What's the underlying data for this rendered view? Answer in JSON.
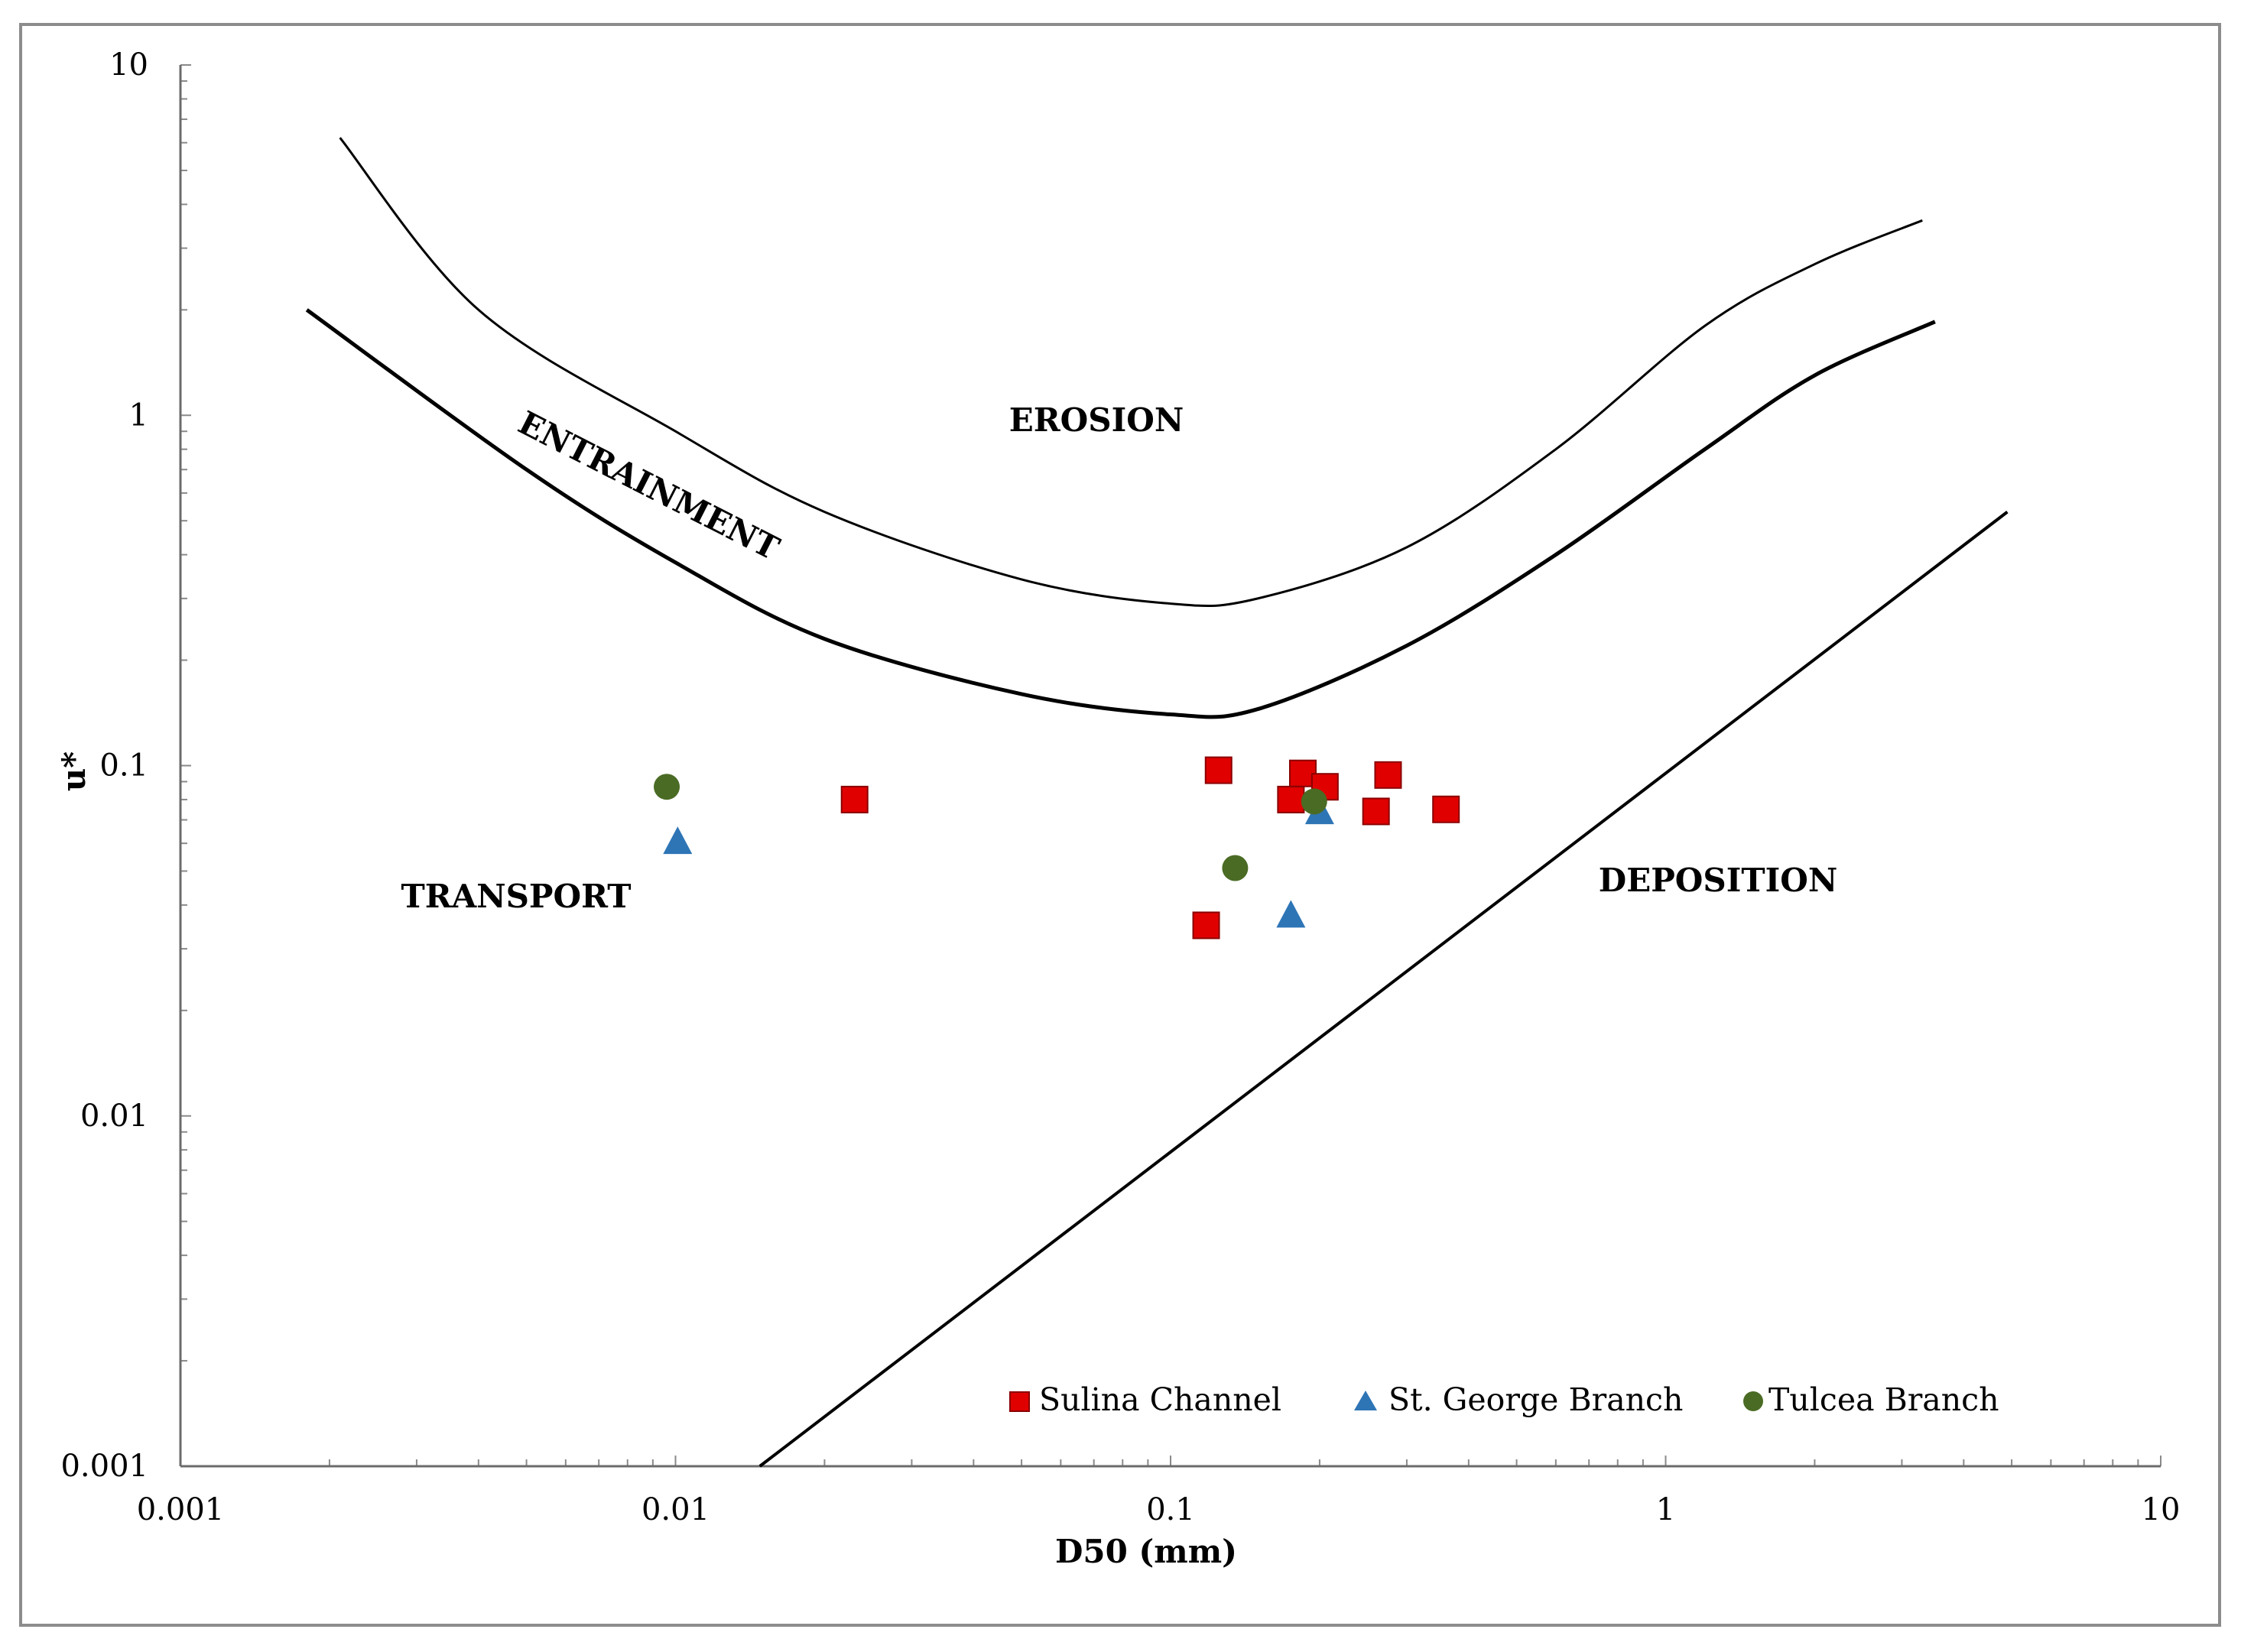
{
  "chart_data": {
    "type": "scatter",
    "xlabel": "D50 (mm)",
    "ylabel": "u*",
    "xscale": "log",
    "yscale": "log",
    "xlim": [
      0.001,
      10
    ],
    "ylim": [
      0.001,
      10
    ],
    "x_tick_labels": [
      "0.001",
      "0.01",
      "0.1",
      "1",
      "10"
    ],
    "y_tick_labels": [
      "0.001",
      "0.01",
      "0.1",
      "1",
      "10"
    ],
    "grid": false,
    "legend_position": "bottom",
    "series": [
      {
        "name": "Sulina Channel",
        "marker": "square",
        "color": "#e00000",
        "points": [
          {
            "x": 0.023,
            "y": 0.08
          },
          {
            "x": 0.125,
            "y": 0.097
          },
          {
            "x": 0.118,
            "y": 0.035
          },
          {
            "x": 0.175,
            "y": 0.08
          },
          {
            "x": 0.185,
            "y": 0.095
          },
          {
            "x": 0.205,
            "y": 0.087
          },
          {
            "x": 0.26,
            "y": 0.074
          },
          {
            "x": 0.275,
            "y": 0.094
          },
          {
            "x": 0.36,
            "y": 0.075
          }
        ]
      },
      {
        "name": "St. George Branch",
        "marker": "triangle",
        "color": "#2e75b6",
        "points": [
          {
            "x": 0.0101,
            "y": 0.06
          },
          {
            "x": 0.175,
            "y": 0.037
          },
          {
            "x": 0.2,
            "y": 0.073
          }
        ]
      },
      {
        "name": "Tulcea Branch",
        "marker": "circle",
        "color": "#4a6b24",
        "points": [
          {
            "x": 0.0096,
            "y": 0.087
          },
          {
            "x": 0.135,
            "y": 0.051
          },
          {
            "x": 0.195,
            "y": 0.079
          }
        ]
      }
    ],
    "curves": [
      {
        "name": "erosion-threshold",
        "points": [
          [
            0.0021,
            6.2
          ],
          [
            0.004,
            2.0
          ],
          [
            0.01,
            0.9
          ],
          [
            0.02,
            0.53
          ],
          [
            0.05,
            0.34
          ],
          [
            0.1,
            0.29
          ],
          [
            0.15,
            0.3
          ],
          [
            0.3,
            0.42
          ],
          [
            0.6,
            0.8
          ],
          [
            1.2,
            1.8
          ],
          [
            2.0,
            2.7
          ],
          [
            3.3,
            3.6
          ]
        ]
      },
      {
        "name": "entrainment-threshold",
        "points": [
          [
            0.0018,
            2.0
          ],
          [
            0.005,
            0.7
          ],
          [
            0.01,
            0.38
          ],
          [
            0.02,
            0.23
          ],
          [
            0.05,
            0.16
          ],
          [
            0.1,
            0.14
          ],
          [
            0.15,
            0.145
          ],
          [
            0.3,
            0.22
          ],
          [
            0.6,
            0.4
          ],
          [
            1.2,
            0.8
          ],
          [
            2.0,
            1.3
          ],
          [
            3.5,
            1.85
          ]
        ]
      },
      {
        "name": "deposition-threshold",
        "points": [
          [
            0.0148,
            0.001
          ],
          [
            4.9,
            0.53
          ]
        ]
      }
    ],
    "annotations": [
      "EROSION",
      "ENTRAINMENT",
      "TRANSPORT",
      "DEPOSITION"
    ]
  }
}
